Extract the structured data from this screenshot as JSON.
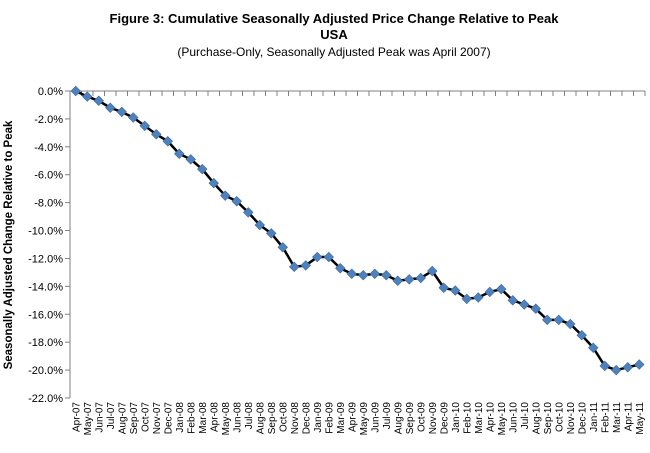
{
  "chart_data": {
    "type": "line",
    "title": "Figure 3: Cumulative Seasonally Adjusted Price Change Relative to Peak",
    "title_line2": "USA",
    "subtitle": "(Purchase-Only, Seasonally Adjusted Peak was April 2007)",
    "xlabel": "",
    "ylabel": "Seasonally Adjusted Change Relative to Peak",
    "ylim": [
      -22.0,
      0.0
    ],
    "yticks": [
      0.0,
      -2.0,
      -4.0,
      -6.0,
      -8.0,
      -10.0,
      -12.0,
      -14.0,
      -16.0,
      -18.0,
      -20.0,
      -22.0
    ],
    "ytick_labels": [
      "0.0%",
      "-2.0%",
      "-4.0%",
      "-6.0%",
      "-8.0%",
      "-10.0%",
      "-12.0%",
      "-14.0%",
      "-16.0%",
      "-18.0%",
      "-20.0%",
      "-22.0%"
    ],
    "grid": false,
    "legend": "none",
    "line_color": "#000000",
    "marker_color": "#4f81bd",
    "marker": "diamond",
    "categories": [
      "Apr-07",
      "May-07",
      "Jun-07",
      "Jul-07",
      "Aug-07",
      "Sep-07",
      "Oct-07",
      "Nov-07",
      "Dec-07",
      "Jan-08",
      "Feb-08",
      "Mar-08",
      "Apr-08",
      "May-08",
      "Jun-08",
      "Jul-08",
      "Aug-08",
      "Sep-08",
      "Oct-08",
      "Nov-08",
      "Dec-08",
      "Jan-09",
      "Feb-09",
      "Mar-09",
      "Apr-09",
      "May-09",
      "Jun-09",
      "Jul-09",
      "Aug-09",
      "Sep-09",
      "Oct-09",
      "Nov-09",
      "Dec-09",
      "Jan-10",
      "Feb-10",
      "Mar-10",
      "Apr-10",
      "May-10",
      "Jun-10",
      "Jul-10",
      "Aug-10",
      "Sep-10",
      "Oct-10",
      "Nov-10",
      "Dec-10",
      "Jan-11",
      "Feb-11",
      "Mar-11",
      "Apr-11",
      "May-11"
    ],
    "values": [
      0.0,
      -0.4,
      -0.7,
      -1.2,
      -1.5,
      -1.9,
      -2.5,
      -3.1,
      -3.6,
      -4.5,
      -4.9,
      -5.6,
      -6.6,
      -7.5,
      -7.9,
      -8.7,
      -9.6,
      -10.2,
      -11.2,
      -12.6,
      -12.5,
      -11.9,
      -11.9,
      -12.7,
      -13.1,
      -13.2,
      -13.1,
      -13.2,
      -13.6,
      -13.5,
      -13.4,
      -12.9,
      -14.1,
      -14.3,
      -14.9,
      -14.8,
      -14.4,
      -14.2,
      -15.0,
      -15.3,
      -15.6,
      -16.4,
      -16.4,
      -16.7,
      -17.5,
      -18.4,
      -19.7,
      -20.0,
      -19.8,
      -19.6
    ]
  }
}
